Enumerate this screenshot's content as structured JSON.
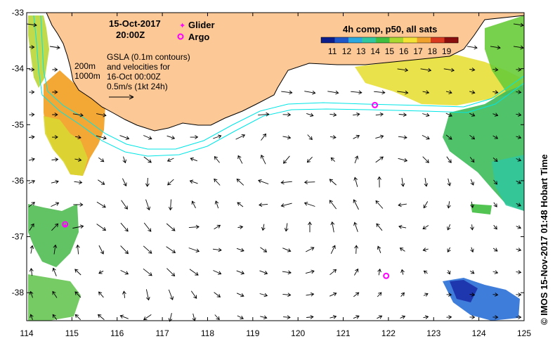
{
  "title": {
    "date": "15-Oct-2017",
    "time": "20:00Z"
  },
  "legend": {
    "glider_label": "Glider",
    "argo_label": "Argo",
    "colorbar_title": "4h comp, p50, all sats",
    "colorbar_ticks": [
      "11",
      "12",
      "13",
      "14",
      "15",
      "16",
      "17",
      "18",
      "19"
    ],
    "colorbar_colors": [
      "#0b1d8a",
      "#1f57c9",
      "#2aa7de",
      "#2fc7a0",
      "#3fbe3f",
      "#a9d82e",
      "#f3e334",
      "#f0a12c",
      "#d93a1f",
      "#8b0e0e"
    ],
    "glider_color": "#ff00ff",
    "argo_color": "#ff00ff"
  },
  "annotation": {
    "line1": "GSLA (0.1m contours)",
    "line2": "and velocities for",
    "line3": "16-Oct 00:00Z",
    "line4": "0.5m/s (1kt 24h)"
  },
  "contours": {
    "label_200": "200m",
    "label_1000": "1000m"
  },
  "axes": {
    "x_ticks": [
      "114",
      "115",
      "116",
      "117",
      "118",
      "119",
      "120",
      "121",
      "122",
      "123",
      "124",
      "125"
    ],
    "x_values": [
      114,
      115,
      116,
      117,
      118,
      119,
      120,
      121,
      122,
      123,
      124,
      125
    ],
    "y_ticks": [
      "-33",
      "-34",
      "-35",
      "-36",
      "-37",
      "-38"
    ],
    "y_values": [
      -33,
      -34,
      -35,
      -36,
      -37,
      -38
    ],
    "lon_range": [
      114,
      125
    ],
    "lat_range": [
      -38.5,
      -33
    ]
  },
  "markers": {
    "glider": [
      [
        114.85,
        -36.8
      ]
    ],
    "argo": [
      [
        121.7,
        -34.65
      ],
      [
        121.95,
        -37.7
      ],
      [
        114.85,
        -36.78
      ]
    ]
  },
  "credit": "© IMOS 15-Nov-2017 01:48 Hobart Time",
  "colors": {
    "land": "#fcc896",
    "coastline": "#000000",
    "isobath": "#00e5e5",
    "arrow": "#000000"
  }
}
